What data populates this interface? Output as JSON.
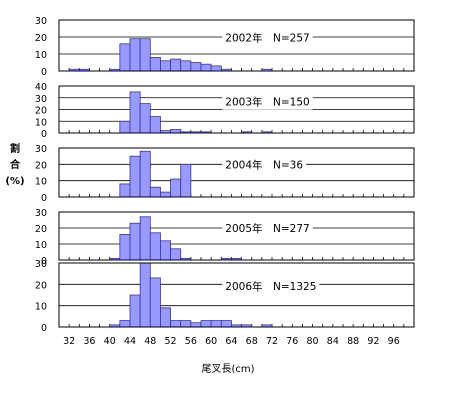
{
  "chart_data": {
    "type": "bar",
    "x_ticks": [
      32,
      36,
      40,
      44,
      48,
      52,
      56,
      60,
      64,
      68,
      72,
      76,
      80,
      84,
      88,
      92,
      96
    ],
    "xlabel": "尾叉長(cm)",
    "ylabel": [
      "割",
      "合",
      "(%)"
    ],
    "bin_width": 2,
    "bin_starts": [
      32,
      34,
      36,
      38,
      40,
      42,
      44,
      46,
      48,
      50,
      52,
      54,
      56,
      58,
      60,
      62,
      64,
      66,
      68,
      70
    ],
    "panels": [
      {
        "label": "2002年　N=257",
        "ylim": [
          0,
          30
        ],
        "yticks": [
          0,
          10,
          20,
          30
        ],
        "values": [
          1,
          1,
          0,
          0,
          1,
          16,
          19,
          19,
          8,
          6,
          7,
          6,
          5,
          4,
          3,
          1,
          0,
          0,
          0,
          1
        ]
      },
      {
        "label": "2003年　N=150",
        "ylim": [
          0,
          40
        ],
        "yticks": [
          0,
          10,
          20,
          30,
          40
        ],
        "values": [
          0,
          0,
          0,
          0,
          0,
          10,
          35,
          25,
          14,
          2,
          3,
          1,
          1,
          1,
          0,
          0,
          0,
          1,
          0,
          1
        ]
      },
      {
        "label": "2004年　N=36",
        "ylim": [
          0,
          30
        ],
        "yticks": [
          0,
          10,
          20,
          30
        ],
        "values": [
          0,
          0,
          0,
          0,
          0,
          8,
          25,
          28,
          6,
          3,
          11,
          20,
          0,
          0,
          0,
          0,
          0,
          0,
          0,
          0
        ]
      },
      {
        "label": "2005年　N=277",
        "ylim": [
          0,
          30
        ],
        "yticks": [
          0,
          10,
          20,
          30
        ],
        "values": [
          0,
          0,
          0,
          0,
          1,
          16,
          23,
          27,
          17,
          12,
          7,
          1,
          0,
          0,
          0,
          1,
          1,
          0,
          0,
          0
        ]
      },
      {
        "label": "2006年　N=1325",
        "ylim": [
          0,
          30
        ],
        "yticks": [
          0,
          10,
          20,
          30
        ],
        "values": [
          0,
          0,
          0,
          0,
          1,
          3,
          15,
          30,
          23,
          9,
          3,
          3,
          2,
          3,
          3,
          3,
          1,
          1,
          0,
          1
        ]
      }
    ]
  },
  "colors": {
    "bar_fill": "#9999ff",
    "bar_stroke": "#333399",
    "frame": "#000000",
    "grid": "#000000",
    "background": "#ffffff"
  }
}
